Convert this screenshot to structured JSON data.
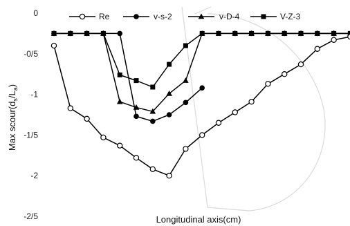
{
  "chart_data": {
    "type": "line",
    "title": "",
    "xlabel": "Longitudinal axis(cm)",
    "ylabel_main": "Max scour(d",
    "ylabel_sub1": "s",
    "ylabel_mid": "/L",
    "ylabel_sub2": "a",
    "ylabel_end": ")",
    "ylim": [
      -2.5,
      0
    ],
    "yticks": [
      0,
      -0.5,
      -1,
      -1.5,
      -2,
      -2.5
    ],
    "ytick_labels": [
      "0",
      "-0/5",
      "-1",
      "-1/5",
      "-2",
      "-2/5"
    ],
    "x": [
      1,
      2,
      3,
      4,
      5,
      6,
      7,
      8,
      9,
      10,
      11,
      12,
      13,
      14,
      15,
      16,
      17,
      18,
      19,
      20,
      21
    ],
    "legend_position": "top",
    "grid": false,
    "series": [
      {
        "name": "Re",
        "marker": "open-circle",
        "color": "#000000",
        "values": [
          -0.4,
          -1.17,
          -1.3,
          -1.53,
          -1.63,
          -1.78,
          -1.92,
          -2.0,
          -1.67,
          -1.5,
          -1.35,
          -1.22,
          -1.09,
          -0.87,
          -0.75,
          -0.63,
          -0.44,
          -0.33,
          -0.29,
          null,
          null
        ]
      },
      {
        "name": "v-s-2",
        "marker": "filled-circle",
        "color": "#000000",
        "values": [
          -0.25,
          -0.25,
          -0.25,
          -0.25,
          -0.25,
          -1.27,
          -1.33,
          -1.25,
          -1.1,
          -0.92,
          null,
          -0.25,
          -0.25,
          -0.25,
          -0.25,
          -0.25,
          -0.25,
          -0.25,
          -0.25,
          -0.25,
          -0.25
        ]
      },
      {
        "name": "v-D-4",
        "marker": "filled-triangle",
        "color": "#000000",
        "values": [
          -0.25,
          -0.25,
          -0.25,
          -0.25,
          -1.09,
          -1.16,
          -1.21,
          -0.99,
          -0.83,
          -0.25,
          -0.25,
          -0.25,
          -0.25,
          -0.25,
          -0.25,
          -0.25,
          -0.25,
          -0.25,
          -0.25,
          -0.25,
          -0.25
        ]
      },
      {
        "name": "V-Z-3",
        "marker": "filled-square",
        "color": "#000000",
        "values": [
          -0.25,
          -0.25,
          -0.25,
          -0.25,
          -0.76,
          -0.83,
          -0.91,
          -0.63,
          -0.4,
          -0.25,
          -0.25,
          -0.25,
          -0.25,
          -0.25,
          -0.25,
          -0.25,
          -0.25,
          -0.25,
          -0.25,
          -0.25,
          -0.25
        ]
      }
    ]
  }
}
